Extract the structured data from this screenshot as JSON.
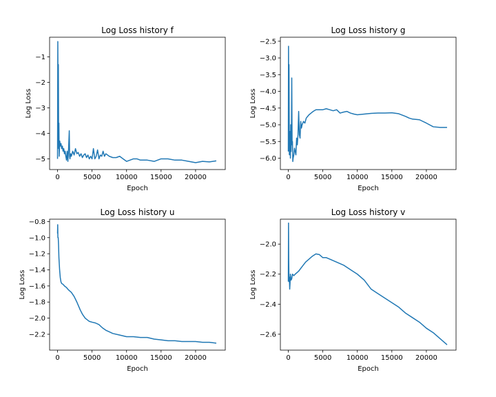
{
  "chart_data": [
    {
      "type": "line",
      "title": "Log Loss history f",
      "xlabel": "Epoch",
      "ylabel": "Log Loss",
      "xlim": [
        -1150,
        24300
      ],
      "ylim": [
        -5.42,
        -0.23
      ],
      "xticks": [
        0,
        5000,
        10000,
        15000,
        20000
      ],
      "yticks": [
        -1,
        -2,
        -3,
        -4,
        -5
      ],
      "grid": false,
      "series": [
        {
          "color": "#1f77b4",
          "x": [
            0,
            40,
            80,
            120,
            160,
            200,
            240,
            320,
            400,
            500,
            600,
            700,
            800,
            900,
            1000,
            1100,
            1200,
            1300,
            1400,
            1500,
            1600,
            1700,
            1750,
            1800,
            1900,
            2000,
            2200,
            2400,
            2600,
            2800,
            3000,
            3200,
            3400,
            3600,
            3800,
            4000,
            4200,
            4400,
            4600,
            4800,
            5000,
            5200,
            5400,
            5600,
            5800,
            6000,
            6200,
            6400,
            6600,
            6800,
            7000,
            7500,
            8000,
            8500,
            9000,
            9500,
            10000,
            10500,
            11000,
            11500,
            12000,
            13000,
            14000,
            15000,
            16000,
            17000,
            18000,
            19000,
            20000,
            21000,
            22000,
            23000
          ],
          "y": [
            -5.0,
            -0.4,
            -3.0,
            -1.3,
            -4.6,
            -3.6,
            -4.9,
            -4.3,
            -4.5,
            -4.4,
            -4.6,
            -4.5,
            -4.7,
            -4.6,
            -4.8,
            -4.7,
            -4.9,
            -5.05,
            -4.7,
            -5.1,
            -4.6,
            -3.9,
            -4.9,
            -5.0,
            -4.8,
            -4.9,
            -4.7,
            -4.85,
            -4.6,
            -4.8,
            -4.75,
            -4.9,
            -4.8,
            -4.95,
            -4.85,
            -4.8,
            -4.95,
            -4.85,
            -5.0,
            -4.9,
            -5.0,
            -4.6,
            -5.0,
            -4.9,
            -4.65,
            -5.0,
            -4.85,
            -4.9,
            -4.7,
            -4.9,
            -4.8,
            -4.9,
            -4.95,
            -4.95,
            -4.9,
            -5.0,
            -5.1,
            -5.05,
            -5.0,
            -5.0,
            -5.05,
            -5.05,
            -5.1,
            -5.0,
            -5.0,
            -5.05,
            -5.05,
            -5.1,
            -5.15,
            -5.1,
            -5.12,
            -5.08
          ]
        }
      ]
    },
    {
      "type": "line",
      "title": "Log Loss history g",
      "xlabel": "Epoch",
      "ylabel": "Log Loss",
      "xlim": [
        -1150,
        24300
      ],
      "ylim": [
        -6.34,
        -2.38
      ],
      "xticks": [
        0,
        5000,
        10000,
        15000,
        20000
      ],
      "yticks": [
        -2.5,
        -3.0,
        -3.5,
        -4.0,
        -4.5,
        -5.0,
        -5.5,
        -6.0
      ],
      "grid": false,
      "series": [
        {
          "color": "#1f77b4",
          "x": [
            0,
            30,
            60,
            100,
            150,
            200,
            250,
            300,
            350,
            400,
            450,
            500,
            550,
            600,
            650,
            700,
            800,
            900,
            1000,
            1100,
            1200,
            1300,
            1400,
            1500,
            1600,
            1700,
            1800,
            1900,
            2000,
            2200,
            2400,
            2600,
            2800,
            3000,
            3300,
            3600,
            4000,
            4500,
            5000,
            5500,
            6000,
            6500,
            7000,
            7500,
            8000,
            8500,
            9000,
            9500,
            10000,
            11000,
            12000,
            13000,
            14000,
            15000,
            16000,
            17000,
            17500,
            18000,
            19000,
            20000,
            21000,
            22000,
            23000
          ],
          "y": [
            -5.8,
            -2.65,
            -4.8,
            -3.2,
            -5.9,
            -5.6,
            -5.2,
            -6.0,
            -5.0,
            -5.8,
            -5.2,
            -3.6,
            -5.6,
            -5.5,
            -6.1,
            -6.0,
            -5.9,
            -5.7,
            -5.8,
            -5.9,
            -5.4,
            -5.6,
            -5.3,
            -4.6,
            -5.3,
            -5.4,
            -4.9,
            -5.1,
            -5.0,
            -4.9,
            -4.95,
            -4.8,
            -4.75,
            -4.7,
            -4.65,
            -4.6,
            -4.55,
            -4.55,
            -4.55,
            -4.52,
            -4.55,
            -4.58,
            -4.55,
            -4.65,
            -4.62,
            -4.6,
            -4.65,
            -4.68,
            -4.7,
            -4.68,
            -4.66,
            -4.65,
            -4.65,
            -4.64,
            -4.67,
            -4.75,
            -4.8,
            -4.83,
            -4.85,
            -4.95,
            -5.06,
            -5.08,
            -5.08
          ]
        }
      ]
    },
    {
      "type": "line",
      "title": "Log Loss history u",
      "xlabel": "Epoch",
      "ylabel": "Log Loss",
      "xlim": [
        -1150,
        24300
      ],
      "ylim": [
        -2.397,
        -0.771
      ],
      "xticks": [
        0,
        5000,
        10000,
        15000,
        20000
      ],
      "yticks": [
        -0.8,
        -1.0,
        -1.2,
        -1.4,
        -1.6,
        -1.8,
        -2.0,
        -2.2
      ],
      "grid": false,
      "series": [
        {
          "color": "#1f77b4",
          "x": [
            0,
            25,
            50,
            100,
            150,
            200,
            300,
            400,
            500,
            600,
            800,
            1000,
            1300,
            1600,
            2000,
            2400,
            2800,
            3000,
            3300,
            3600,
            4000,
            4300,
            4600,
            5000,
            5500,
            6000,
            6500,
            7000,
            7500,
            8000,
            9000,
            10000,
            11000,
            12000,
            13000,
            14000,
            15000,
            16000,
            17000,
            18000,
            19000,
            20000,
            21000,
            22000,
            23000
          ],
          "y": [
            -0.95,
            -0.84,
            -1.0,
            -1.0,
            -1.1,
            -1.25,
            -1.4,
            -1.5,
            -1.55,
            -1.57,
            -1.58,
            -1.6,
            -1.62,
            -1.65,
            -1.68,
            -1.73,
            -1.8,
            -1.84,
            -1.9,
            -1.95,
            -2.0,
            -2.02,
            -2.04,
            -2.05,
            -2.06,
            -2.08,
            -2.12,
            -2.15,
            -2.17,
            -2.19,
            -2.21,
            -2.23,
            -2.23,
            -2.24,
            -2.24,
            -2.26,
            -2.27,
            -2.28,
            -2.28,
            -2.29,
            -2.29,
            -2.29,
            -2.3,
            -2.3,
            -2.31
          ]
        }
      ]
    },
    {
      "type": "line",
      "title": "Log Loss history v",
      "xlabel": "Epoch",
      "ylabel": "Log Loss",
      "xlim": [
        -1150,
        24300
      ],
      "ylim": [
        -2.706,
        -1.834
      ],
      "xticks": [
        0,
        5000,
        10000,
        15000,
        20000
      ],
      "yticks": [
        -2.0,
        -2.2,
        -2.4,
        -2.6
      ],
      "grid": false,
      "series": [
        {
          "color": "#1f77b4",
          "x": [
            0,
            30,
            60,
            100,
            150,
            200,
            250,
            300,
            400,
            500,
            600,
            800,
            1000,
            1500,
            2000,
            2500,
            3000,
            3500,
            4000,
            4500,
            5000,
            5500,
            6000,
            7000,
            8000,
            9000,
            10000,
            11000,
            12000,
            13000,
            14000,
            15000,
            16000,
            17000,
            18000,
            19000,
            20000,
            21000,
            22000,
            23000
          ],
          "y": [
            -2.25,
            -1.86,
            -2.1,
            -2.25,
            -2.22,
            -2.3,
            -2.26,
            -2.2,
            -2.24,
            -2.23,
            -2.2,
            -2.21,
            -2.2,
            -2.18,
            -2.15,
            -2.12,
            -2.1,
            -2.08,
            -2.065,
            -2.07,
            -2.09,
            -2.09,
            -2.1,
            -2.12,
            -2.14,
            -2.17,
            -2.2,
            -2.24,
            -2.3,
            -2.33,
            -2.36,
            -2.39,
            -2.42,
            -2.46,
            -2.49,
            -2.52,
            -2.56,
            -2.59,
            -2.63,
            -2.67
          ]
        }
      ]
    }
  ]
}
